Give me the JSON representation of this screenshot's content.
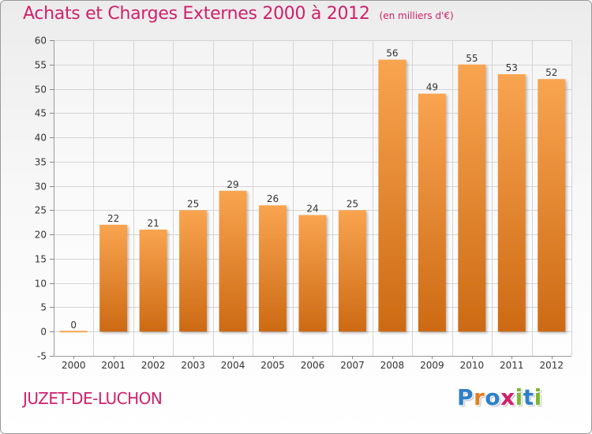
{
  "header": {
    "title": "Achats et Charges Externes 2000 à 2012",
    "unit": "(en milliers d'€)"
  },
  "footer": {
    "place": "JUZET-DE-LUCHON",
    "brand_letters": [
      {
        "char": "P",
        "color": "#2f80c8"
      },
      {
        "char": "r",
        "color": "#e07f25"
      },
      {
        "char": "o",
        "color": "#2f80c8"
      },
      {
        "char": "x",
        "color": "#d0206c"
      },
      {
        "char": "i",
        "color": "#7ab834"
      },
      {
        "char": "t",
        "color": "#2f80c8"
      },
      {
        "char": "i",
        "color": "#7ab834"
      }
    ]
  },
  "colors": {
    "title": "#d0206c",
    "bar_top": "#f9a450",
    "bar_bottom": "#cd6a14",
    "grid": "#d4d4d4",
    "axis_text": "#333333"
  },
  "chart_data": {
    "type": "bar",
    "title": "Achats et Charges Externes 2000 à 2012",
    "subtitle": "(en milliers d'€)",
    "categories": [
      "2000",
      "2001",
      "2002",
      "2003",
      "2004",
      "2005",
      "2006",
      "2007",
      "2008",
      "2009",
      "2010",
      "2011",
      "2012"
    ],
    "values": [
      0,
      22,
      21,
      25,
      29,
      26,
      24,
      25,
      56,
      49,
      55,
      53,
      52
    ],
    "data_labels": [
      "0",
      "22",
      "21",
      "25",
      "29",
      "26",
      "24",
      "25",
      "56",
      "49",
      "55",
      "53",
      "52"
    ],
    "ylim": [
      -5,
      60
    ],
    "yticks": [
      -5,
      0,
      5,
      10,
      15,
      20,
      25,
      30,
      35,
      40,
      45,
      50,
      55,
      60
    ],
    "ytick_labels": [
      "-5",
      "0",
      "5",
      "10",
      "15",
      "20",
      "25",
      "30",
      "35",
      "40",
      "45",
      "50",
      "55",
      "60"
    ],
    "grid": true,
    "xlabel": "",
    "ylabel": ""
  }
}
